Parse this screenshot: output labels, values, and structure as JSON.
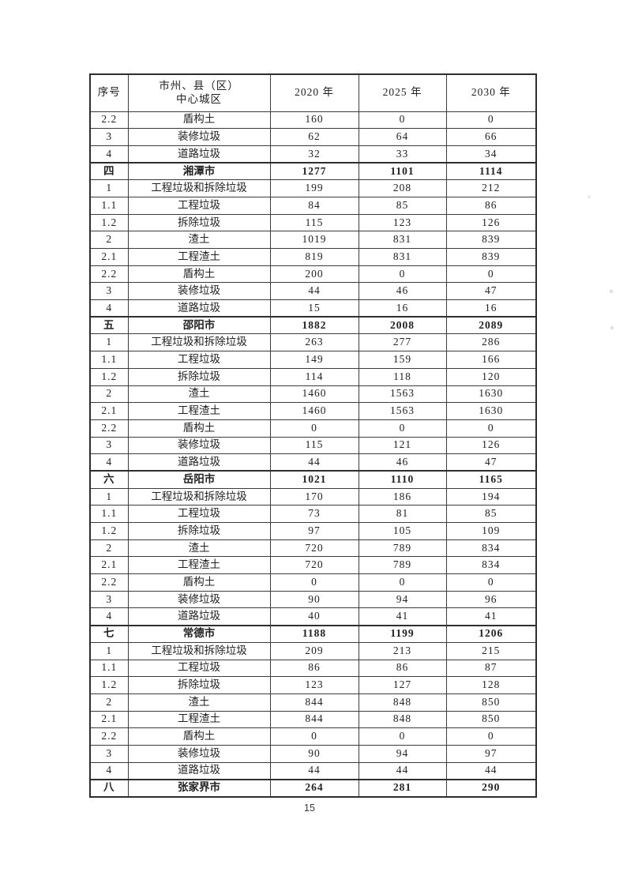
{
  "page": {
    "number": "15"
  },
  "table": {
    "header": {
      "col_no": "序号",
      "col_name_line1": "市州、县（区）",
      "col_name_line2": "中心城区",
      "col_2020": "2020 年",
      "col_2025": "2025 年",
      "col_2030": "2030 年"
    },
    "rows": [
      {
        "no": "2.2",
        "name": "盾构土",
        "y2020": "160",
        "y2025": "0",
        "y2030": "0",
        "section": false
      },
      {
        "no": "3",
        "name": "装修垃圾",
        "y2020": "62",
        "y2025": "64",
        "y2030": "66",
        "section": false
      },
      {
        "no": "4",
        "name": "道路垃圾",
        "y2020": "32",
        "y2025": "33",
        "y2030": "34",
        "section": false
      },
      {
        "no": "四",
        "name": "湘潭市",
        "y2020": "1277",
        "y2025": "1101",
        "y2030": "1114",
        "section": true
      },
      {
        "no": "1",
        "name": "工程垃圾和拆除垃圾",
        "y2020": "199",
        "y2025": "208",
        "y2030": "212",
        "section": false
      },
      {
        "no": "1.1",
        "name": "工程垃圾",
        "y2020": "84",
        "y2025": "85",
        "y2030": "86",
        "section": false
      },
      {
        "no": "1.2",
        "name": "拆除垃圾",
        "y2020": "115",
        "y2025": "123",
        "y2030": "126",
        "section": false
      },
      {
        "no": "2",
        "name": "渣土",
        "y2020": "1019",
        "y2025": "831",
        "y2030": "839",
        "section": false
      },
      {
        "no": "2.1",
        "name": "工程渣土",
        "y2020": "819",
        "y2025": "831",
        "y2030": "839",
        "section": false
      },
      {
        "no": "2.2",
        "name": "盾构土",
        "y2020": "200",
        "y2025": "0",
        "y2030": "0",
        "section": false
      },
      {
        "no": "3",
        "name": "装修垃圾",
        "y2020": "44",
        "y2025": "46",
        "y2030": "47",
        "section": false
      },
      {
        "no": "4",
        "name": "道路垃圾",
        "y2020": "15",
        "y2025": "16",
        "y2030": "16",
        "section": false
      },
      {
        "no": "五",
        "name": "邵阳市",
        "y2020": "1882",
        "y2025": "2008",
        "y2030": "2089",
        "section": true
      },
      {
        "no": "1",
        "name": "工程垃圾和拆除垃圾",
        "y2020": "263",
        "y2025": "277",
        "y2030": "286",
        "section": false
      },
      {
        "no": "1.1",
        "name": "工程垃圾",
        "y2020": "149",
        "y2025": "159",
        "y2030": "166",
        "section": false
      },
      {
        "no": "1.2",
        "name": "拆除垃圾",
        "y2020": "114",
        "y2025": "118",
        "y2030": "120",
        "section": false
      },
      {
        "no": "2",
        "name": "渣土",
        "y2020": "1460",
        "y2025": "1563",
        "y2030": "1630",
        "section": false
      },
      {
        "no": "2.1",
        "name": "工程渣土",
        "y2020": "1460",
        "y2025": "1563",
        "y2030": "1630",
        "section": false
      },
      {
        "no": "2.2",
        "name": "盾构土",
        "y2020": "0",
        "y2025": "0",
        "y2030": "0",
        "section": false
      },
      {
        "no": "3",
        "name": "装修垃圾",
        "y2020": "115",
        "y2025": "121",
        "y2030": "126",
        "section": false
      },
      {
        "no": "4",
        "name": "道路垃圾",
        "y2020": "44",
        "y2025": "46",
        "y2030": "47",
        "section": false
      },
      {
        "no": "六",
        "name": "岳阳市",
        "y2020": "1021",
        "y2025": "1110",
        "y2030": "1165",
        "section": true
      },
      {
        "no": "1",
        "name": "工程垃圾和拆除垃圾",
        "y2020": "170",
        "y2025": "186",
        "y2030": "194",
        "section": false
      },
      {
        "no": "1.1",
        "name": "工程垃圾",
        "y2020": "73",
        "y2025": "81",
        "y2030": "85",
        "section": false
      },
      {
        "no": "1.2",
        "name": "拆除垃圾",
        "y2020": "97",
        "y2025": "105",
        "y2030": "109",
        "section": false
      },
      {
        "no": "2",
        "name": "渣土",
        "y2020": "720",
        "y2025": "789",
        "y2030": "834",
        "section": false
      },
      {
        "no": "2.1",
        "name": "工程渣土",
        "y2020": "720",
        "y2025": "789",
        "y2030": "834",
        "section": false
      },
      {
        "no": "2.2",
        "name": "盾构土",
        "y2020": "0",
        "y2025": "0",
        "y2030": "0",
        "section": false
      },
      {
        "no": "3",
        "name": "装修垃圾",
        "y2020": "90",
        "y2025": "94",
        "y2030": "96",
        "section": false
      },
      {
        "no": "4",
        "name": "道路垃圾",
        "y2020": "40",
        "y2025": "41",
        "y2030": "41",
        "section": false
      },
      {
        "no": "七",
        "name": "常德市",
        "y2020": "1188",
        "y2025": "1199",
        "y2030": "1206",
        "section": true
      },
      {
        "no": "1",
        "name": "工程垃圾和拆除垃圾",
        "y2020": "209",
        "y2025": "213",
        "y2030": "215",
        "section": false
      },
      {
        "no": "1.1",
        "name": "工程垃圾",
        "y2020": "86",
        "y2025": "86",
        "y2030": "87",
        "section": false
      },
      {
        "no": "1.2",
        "name": "拆除垃圾",
        "y2020": "123",
        "y2025": "127",
        "y2030": "128",
        "section": false
      },
      {
        "no": "2",
        "name": "渣土",
        "y2020": "844",
        "y2025": "848",
        "y2030": "850",
        "section": false
      },
      {
        "no": "2.1",
        "name": "工程渣土",
        "y2020": "844",
        "y2025": "848",
        "y2030": "850",
        "section": false
      },
      {
        "no": "2.2",
        "name": "盾构土",
        "y2020": "0",
        "y2025": "0",
        "y2030": "0",
        "section": false
      },
      {
        "no": "3",
        "name": "装修垃圾",
        "y2020": "90",
        "y2025": "94",
        "y2030": "97",
        "section": false
      },
      {
        "no": "4",
        "name": "道路垃圾",
        "y2020": "44",
        "y2025": "44",
        "y2030": "44",
        "section": false
      },
      {
        "no": "八",
        "name": "张家界市",
        "y2020": "264",
        "y2025": "281",
        "y2030": "290",
        "section": true
      }
    ]
  }
}
